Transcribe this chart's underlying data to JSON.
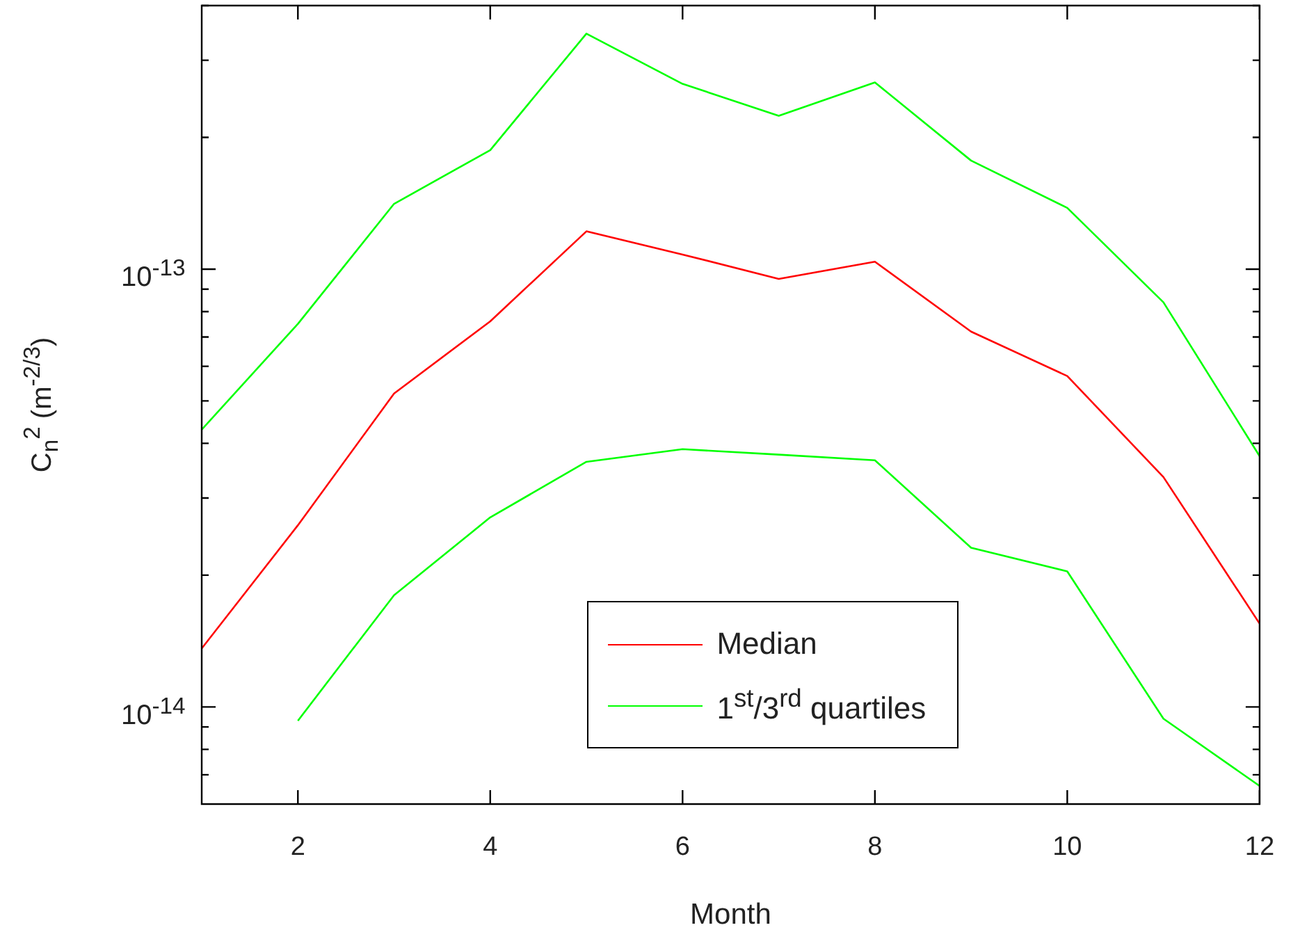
{
  "chart_data": {
    "type": "line",
    "xlabel": "Month",
    "ylabel": "C$_{n}$$^{2}$ (m$^{-2/3}$)",
    "x": [
      1,
      2,
      3,
      4,
      5,
      6,
      7,
      8,
      9,
      10,
      11,
      12
    ],
    "series": [
      {
        "name": "Median",
        "color": "#ff0000",
        "values": [
          1.36e-14,
          2.6e-14,
          5.2e-14,
          7.6e-14,
          1.22e-13,
          1.08e-13,
          9.5e-14,
          1.04e-13,
          7.2e-14,
          5.7e-14,
          3.35e-14,
          1.55e-14
        ]
      },
      {
        "name": "1$^{st}$/3$^{rd}$ quartiles",
        "color": "#00ff00",
        "values": [
          4.3e-14,
          7.5e-14,
          1.41e-13,
          1.87e-13,
          3.45e-13,
          2.65e-13,
          2.24e-13,
          2.67e-13,
          1.77e-13,
          1.38e-13,
          8.4e-14,
          3.74e-14
        ]
      },
      {
        "color": "#00ff00",
        "values": [
          null,
          9.3e-15,
          1.8e-14,
          2.71e-14,
          3.63e-14,
          3.88e-14,
          3.77e-14,
          3.66e-14,
          2.31e-14,
          2.04e-14,
          9.4e-15,
          6.6e-15
        ]
      }
    ],
    "log": "y",
    "xlim": [
      1,
      12
    ],
    "xticks": [
      2,
      4,
      6,
      8,
      10,
      12
    ],
    "ylim": [
      6e-15,
      4e-13
    ],
    "yticks": [
      {
        "value": 7e-15,
        "label": null
      },
      {
        "value": 8e-15,
        "label": null
      },
      {
        "value": 9e-15,
        "label": null
      },
      {
        "value": 1e-14,
        "label": "10$^{-14}$"
      },
      {
        "value": 2e-14,
        "label": null
      },
      {
        "value": 3e-14,
        "label": null
      },
      {
        "value": 4e-14,
        "label": null
      },
      {
        "value": 5e-14,
        "label": null
      },
      {
        "value": 6e-14,
        "label": null
      },
      {
        "value": 7e-14,
        "label": null
      },
      {
        "value": 8e-14,
        "label": null
      },
      {
        "value": 9e-14,
        "label": null
      },
      {
        "value": 1e-13,
        "label": "10$^{-13}$"
      },
      {
        "value": 2e-13,
        "label": null
      },
      {
        "value": 3e-13,
        "label": null
      },
      {
        "value": 4e-13,
        "label": null
      }
    ],
    "grid": false,
    "legend": "bottom",
    "marker": "none",
    "line_style": "solid"
  }
}
